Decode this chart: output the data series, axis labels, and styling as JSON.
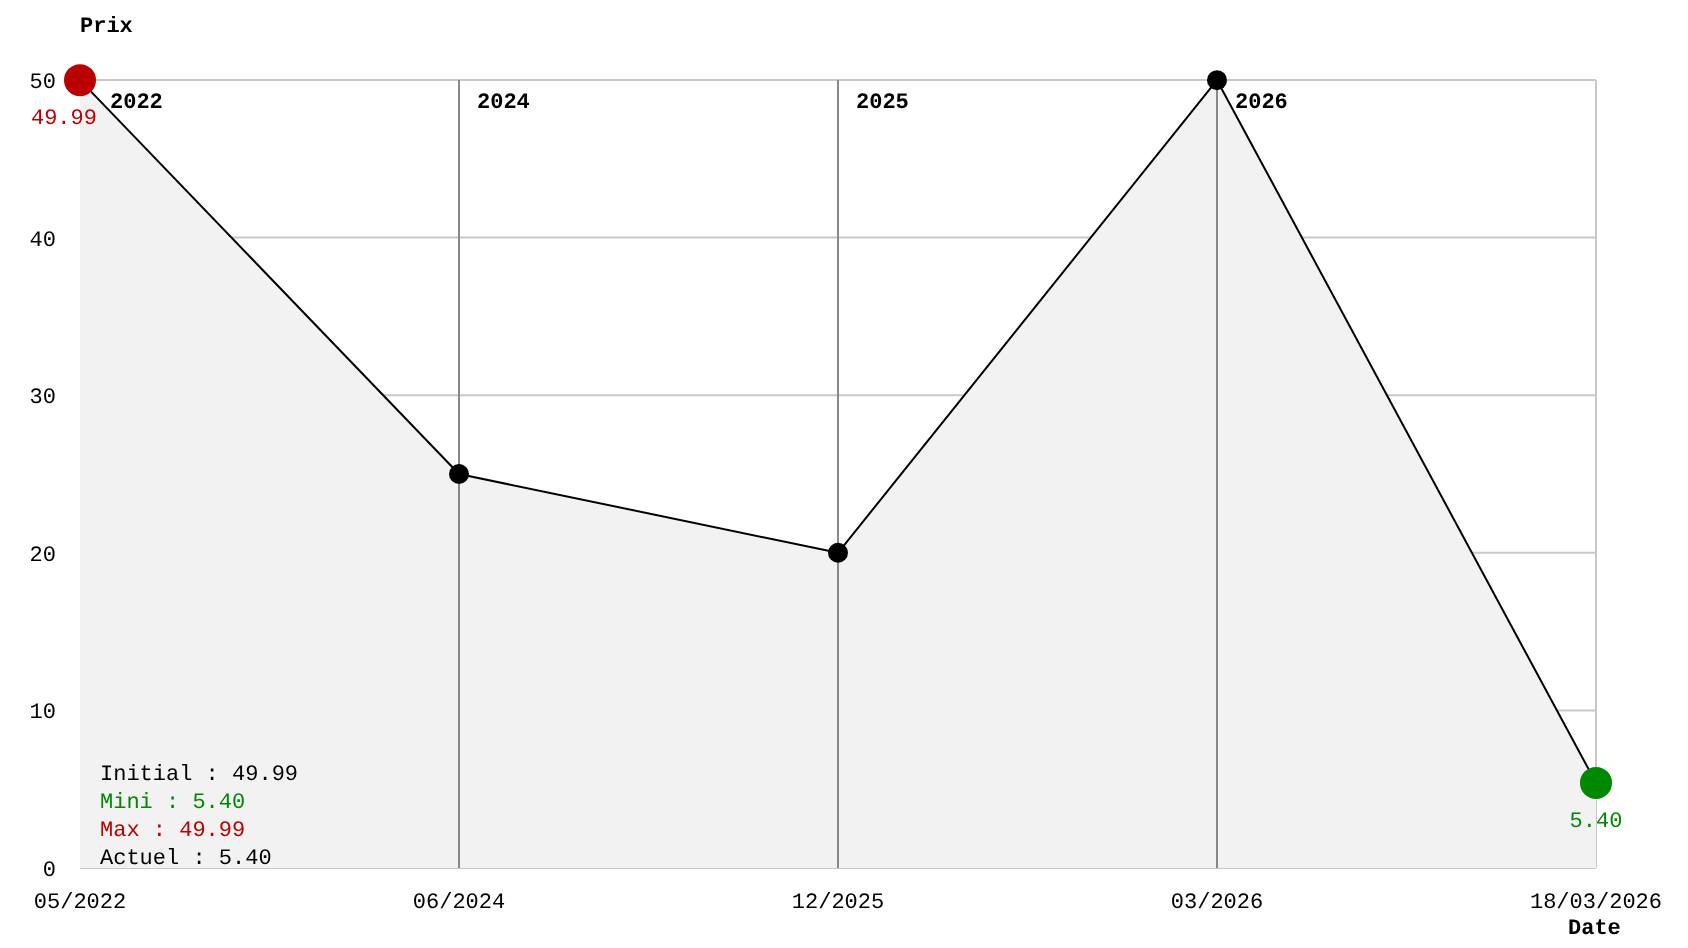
{
  "chart_data": {
    "type": "area",
    "ylabel": "Prix",
    "xlabel": "Date",
    "categories": [
      "05/2022",
      "06/2024",
      "12/2025",
      "03/2026",
      "18/03/2026"
    ],
    "series": [
      {
        "color": "#000000",
        "values": [
          49.99,
          25,
          20,
          49.99,
          5.4
        ],
        "colors": [
          "#bb0000",
          "#000000",
          "#000000",
          "#000000",
          "#008800"
        ],
        "value_labels": [
          "49.99",
          null,
          null,
          null,
          "5.40"
        ]
      }
    ],
    "ylim": [
      0,
      50
    ],
    "yticks": [
      0,
      10,
      20,
      30,
      40,
      50
    ],
    "grid": "y",
    "marker": "circle",
    "ref_lines": [
      {
        "axis": "x",
        "value": "06/2024",
        "label": "2024",
        "color": "#888888"
      },
      {
        "axis": "x",
        "value": "12/2025",
        "label": "2025",
        "color": "#888888"
      },
      {
        "axis": "x",
        "value": "03/2026",
        "label": "2026",
        "color": "#888888"
      }
    ],
    "annotations": [
      {
        "text": "2022",
        "x": "05/2022",
        "y": 50
      },
      "Initial : 49.99",
      "Mini : 5.40",
      "Max : 49.99",
      "Actuel : 5.40"
    ]
  }
}
